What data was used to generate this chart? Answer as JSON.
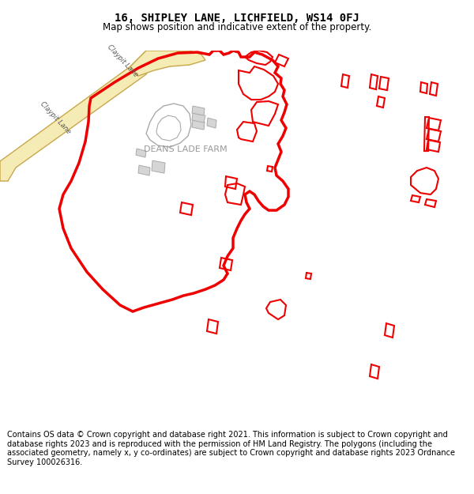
{
  "title": "16, SHIPLEY LANE, LICHFIELD, WS14 0FJ",
  "subtitle": "Map shows position and indicative extent of the property.",
  "footer": "Contains OS data © Crown copyright and database right 2021. This information is subject to Crown copyright and database rights 2023 and is reproduced with the permission of HM Land Registry. The polygons (including the associated geometry, namely x, y co-ordinates) are subject to Crown copyright and database rights 2023 Ordnance Survey 100026316.",
  "map_bg": "#f7f7f7",
  "road_fill": "#f5ebb5",
  "road_edge": "#c8a84b",
  "road_label_color": "#555555",
  "farm_label": "DEANS LADE FARM",
  "farm_label_color": "#999999",
  "plot_color": "#ee0000",
  "building_fill": "#d5d5d5",
  "building_edge": "#aaaaaa",
  "title_fontsize": 10,
  "subtitle_fontsize": 8.5,
  "footer_fontsize": 7.0
}
